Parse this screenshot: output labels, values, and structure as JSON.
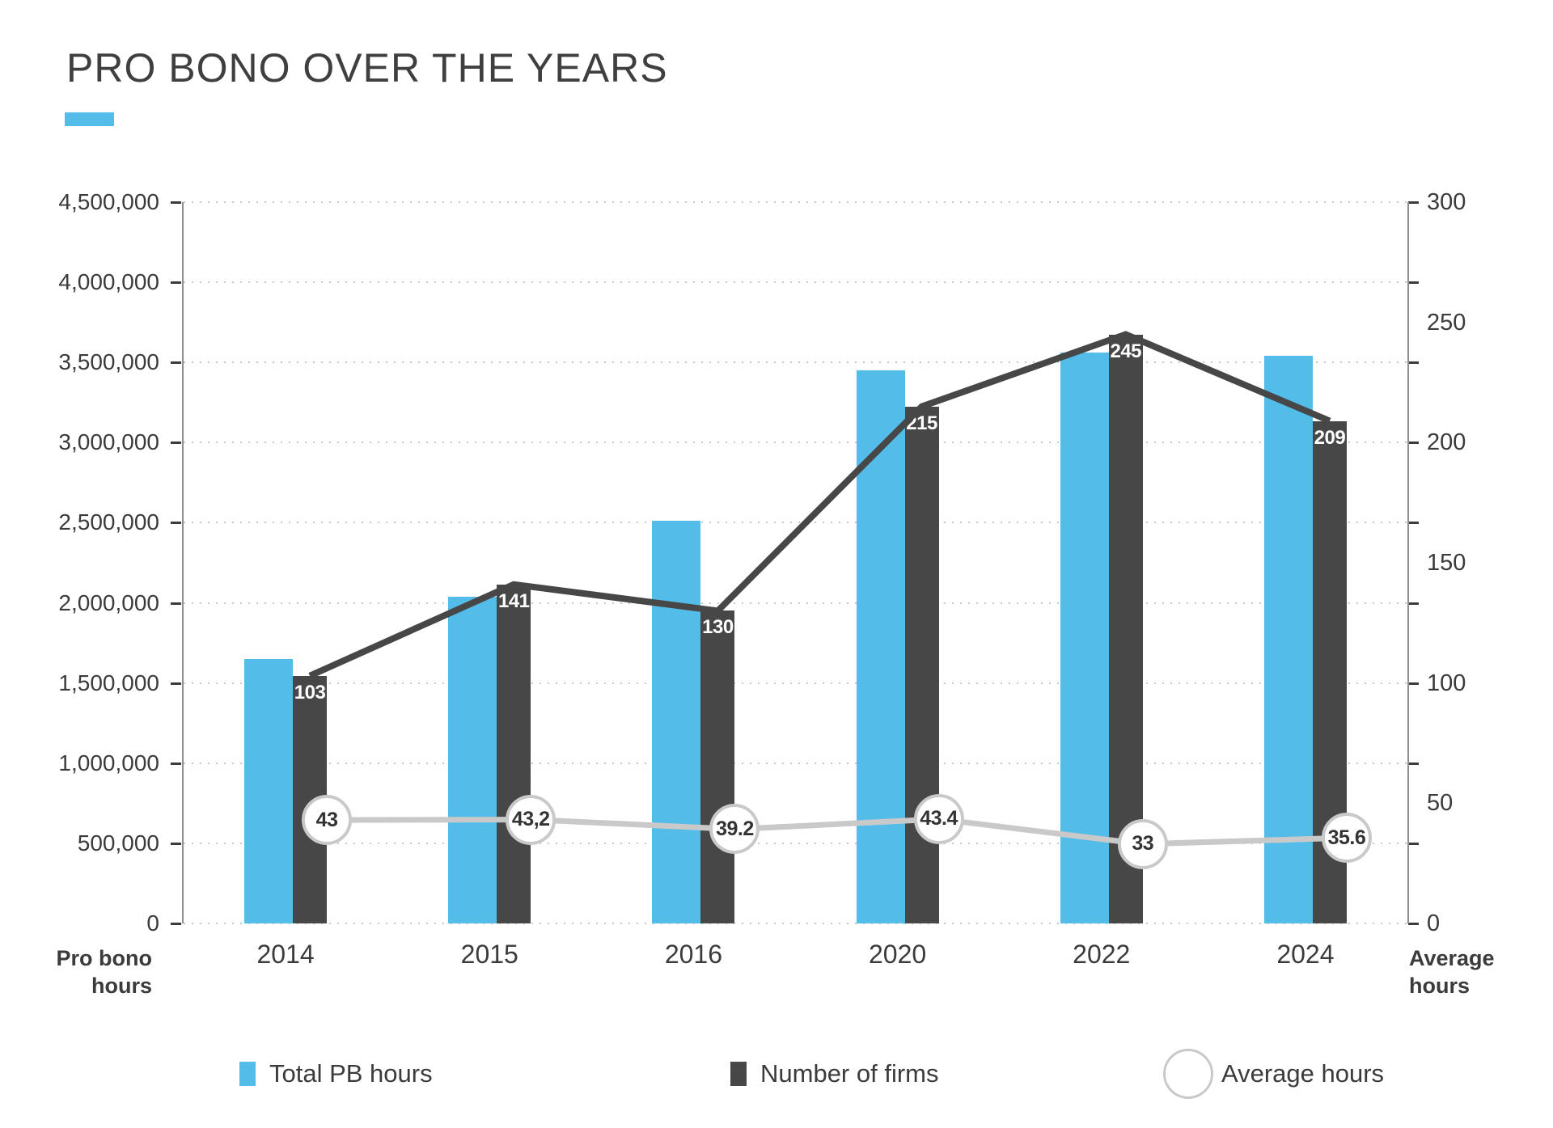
{
  "title": "PRO BONO OVER THE YEARS",
  "colors": {
    "total_pb_hours_blue": "#53BCE9",
    "number_of_firms_dark": "#474747",
    "average_line_gray": "#C9C9C9",
    "grid_dotted_gray": "#C7C7C7",
    "axis_line_gray": "#8F8F8F",
    "text_dark": "#3B3B3B",
    "title_underline_blue": "#53BCE9",
    "bar_value_text": "#FFFFFF"
  },
  "axis_captions": {
    "left_line1": "Pro bono",
    "left_line2": "hours",
    "right_line1": "Average",
    "right_line2": "hours"
  },
  "legend": [
    {
      "label": "Total PB hours",
      "swatch": "blue-square"
    },
    {
      "label": "Number of firms",
      "swatch": "dark-square"
    },
    {
      "label": "Average hours",
      "swatch": "gray-circle-outline"
    }
  ],
  "chart_data": {
    "type": "bar",
    "subtype": "dual-axis bar + line combo",
    "title": "PRO BONO OVER THE YEARS",
    "categories": [
      "2014",
      "2015",
      "2016",
      "2020",
      "2022",
      "2024"
    ],
    "series": [
      {
        "name": "Total PB hours",
        "kind": "bar",
        "axis": "left",
        "values": [
          1650000,
          2040000,
          2510000,
          3450000,
          3560000,
          3540000
        ]
      },
      {
        "name": "Number of firms",
        "kind": "bar",
        "axis": "right",
        "values": [
          103,
          141,
          130,
          215,
          245,
          209
        ],
        "value_labels": [
          "103",
          "141",
          "130",
          "215",
          "245",
          "209"
        ]
      },
      {
        "name": "Average hours",
        "kind": "line-with-circle-markers",
        "axis": "right",
        "values": [
          43,
          43.2,
          39.2,
          43.4,
          33,
          35.6
        ],
        "value_labels": [
          "43",
          "43,2",
          "39.2",
          "43.4",
          "33",
          "35.6"
        ]
      }
    ],
    "left_axis": {
      "label": "Pro bono hours",
      "min": 0,
      "max": 4500000,
      "step": 500000,
      "tick_labels": [
        "4,500,000",
        "4,000,000",
        "3,500,000",
        "3,000,000",
        "2,500,000",
        "2,000,000",
        "1,500,000",
        "1,000,000",
        "500,000",
        "0"
      ]
    },
    "right_axis": {
      "label": "Average hours",
      "min": 0,
      "max": 300,
      "label_step": 50,
      "tick_labels": [
        "300",
        "250",
        "200",
        "150",
        "100",
        "50",
        "0"
      ]
    },
    "grid": "dotted horizontal lines at every 500,000 (left axis)",
    "legend_position": "bottom"
  }
}
